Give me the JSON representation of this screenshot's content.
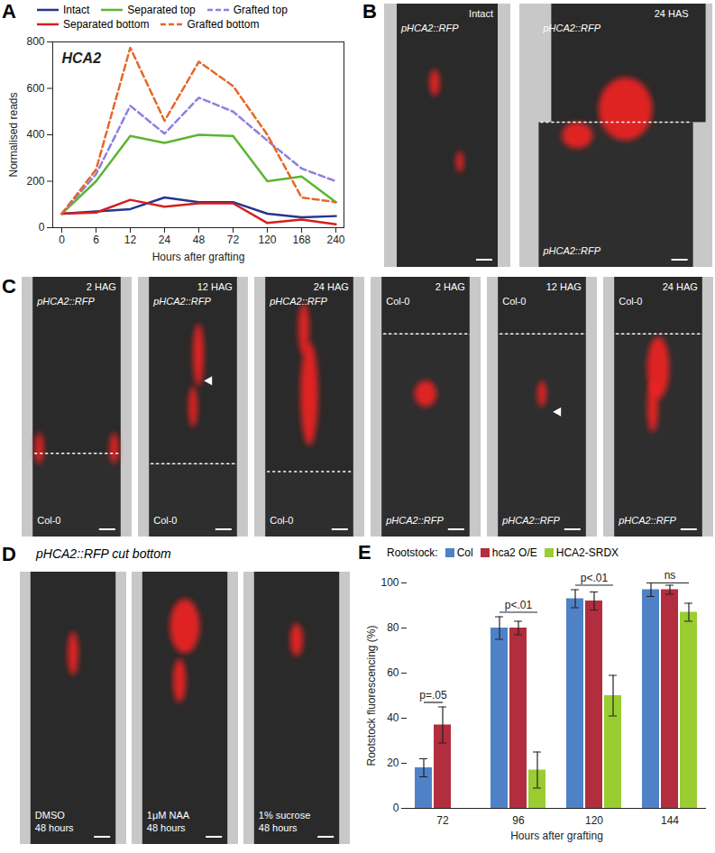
{
  "chart_data": [
    {
      "type": "line",
      "panel_label": "A",
      "title": "HCA2",
      "xlabel": "Hours after grafting",
      "ylabel": "Normalised reads",
      "categories": [
        "0",
        "6",
        "12",
        "24",
        "48",
        "72",
        "120",
        "168",
        "240"
      ],
      "ylim": [
        0,
        800
      ],
      "yticks": [
        0,
        200,
        400,
        600,
        800
      ],
      "legend": "top",
      "series": [
        {
          "name": "Intact",
          "color": "#26358f",
          "line_style": "solid",
          "values": [
            60,
            70,
            80,
            130,
            110,
            110,
            60,
            45,
            50
          ]
        },
        {
          "name": "Separated top",
          "color": "#5cb531",
          "line_style": "solid",
          "values": [
            60,
            200,
            395,
            365,
            400,
            395,
            200,
            220,
            110
          ]
        },
        {
          "name": "Grafted top",
          "color": "#8f7fe0",
          "line_style": "dashed",
          "values": [
            60,
            230,
            525,
            405,
            560,
            500,
            375,
            255,
            200
          ]
        },
        {
          "name": "Separated bottom",
          "color": "#d3201f",
          "line_style": "solid",
          "values": [
            60,
            65,
            120,
            90,
            105,
            105,
            20,
            35,
            15
          ]
        },
        {
          "name": "Grafted bottom",
          "color": "#e4682a",
          "line_style": "dashed",
          "values": [
            60,
            250,
            775,
            460,
            715,
            610,
            400,
            130,
            110
          ]
        }
      ]
    },
    {
      "type": "bar",
      "panel_label": "E",
      "legend_title": "Rootstock:",
      "legend": "top",
      "xlabel": "Hours after grafting",
      "ylabel": "Rootstock fluorescencing (%)",
      "categories": [
        "72",
        "96",
        "120",
        "144"
      ],
      "ylim": [
        0,
        100
      ],
      "yticks": [
        0,
        20,
        40,
        60,
        80,
        100
      ],
      "series": [
        {
          "name": "Col",
          "color": "#4f81c7",
          "values": [
            18,
            80,
            93,
            97
          ],
          "errors": [
            4,
            5,
            4,
            3
          ]
        },
        {
          "name": "hca2 O/E",
          "color": "#b22d3d",
          "values": [
            37,
            80,
            92,
            97
          ],
          "errors": [
            8,
            3,
            4,
            2
          ]
        },
        {
          "name": "HCA2-SRDX",
          "color": "#9acd32",
          "values": [
            null,
            17,
            50,
            87
          ],
          "errors": [
            null,
            8,
            9,
            4
          ]
        }
      ],
      "annotations": [
        {
          "text": "p=.05",
          "x": "72",
          "from": "Col",
          "to": "hca2 O/E",
          "y": 47
        },
        {
          "text": "p<.01",
          "x": "96",
          "from": "Col",
          "to": "HCA2-SRDX",
          "y": 87
        },
        {
          "text": "p<.01",
          "x": "120",
          "from": "Col",
          "to": "HCA2-SRDX",
          "y": 99
        },
        {
          "text": "ns",
          "x": "144",
          "from": "Col",
          "to": "HCA2-SRDX",
          "y": 100
        }
      ]
    }
  ],
  "image_panels": [
    {
      "panel_label": "B",
      "images": [
        {
          "tag": "Intact",
          "top": "pHCA2::RFP"
        },
        {
          "tag": "24 HAS",
          "top": "pHCA2::RFP",
          "bottom": "pHCA2::RFP"
        }
      ]
    },
    {
      "panel_label": "C",
      "images": [
        {
          "tag": "2 HAG",
          "top": "pHCA2::RFP",
          "bottom": "Col-0"
        },
        {
          "tag": "12 HAG",
          "top": "pHCA2::RFP",
          "bottom": "Col-0"
        },
        {
          "tag": "24 HAG",
          "top": "pHCA2::RFP",
          "bottom": "Col-0"
        },
        {
          "tag": "2 HAG",
          "top": "Col-0",
          "bottom": "pHCA2::RFP"
        },
        {
          "tag": "12 HAG",
          "top": "Col-0",
          "bottom": "pHCA2::RFP"
        },
        {
          "tag": "24 HAG",
          "top": "Col-0",
          "bottom": "pHCA2::RFP"
        }
      ]
    },
    {
      "panel_label": "D",
      "title": "pHCA2::RFP cut bottom",
      "images": [
        {
          "caption": [
            "DMSO",
            "48 hours"
          ]
        },
        {
          "caption": [
            "1μM NAA",
            "48 hours"
          ]
        },
        {
          "caption": [
            "1% sucrose",
            "48 hours"
          ]
        }
      ]
    }
  ]
}
